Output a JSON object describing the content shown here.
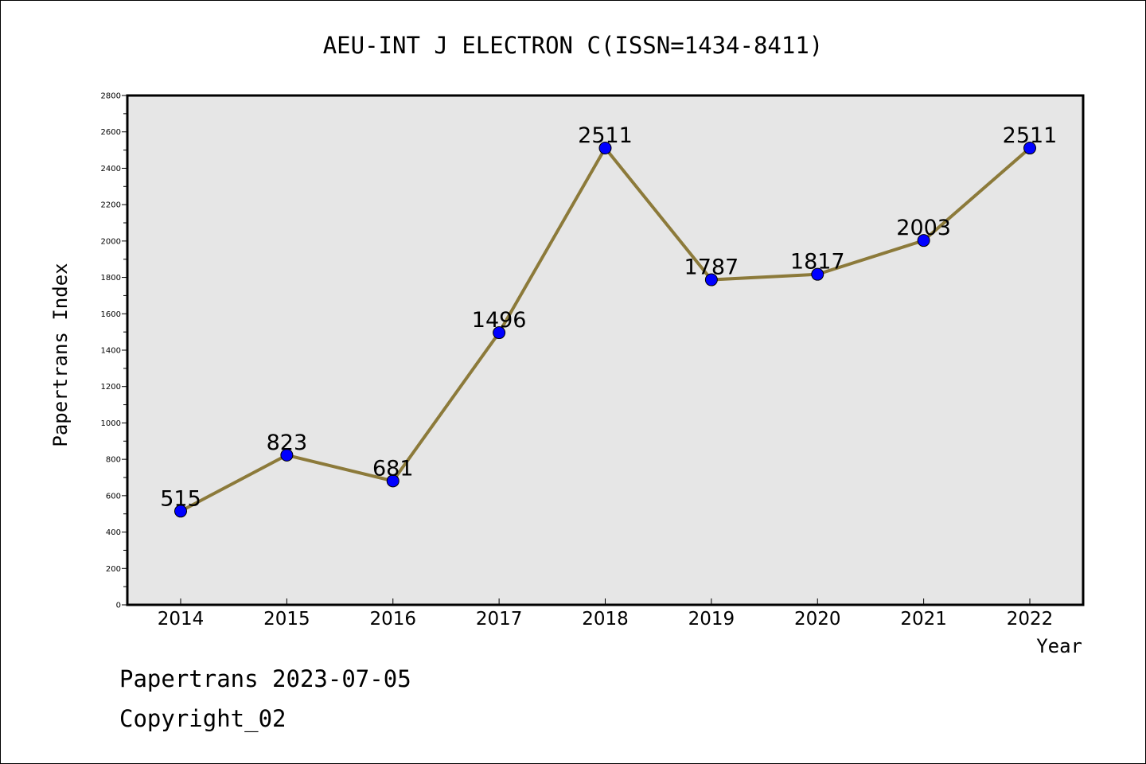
{
  "chart_data": {
    "type": "line",
    "title": "AEU-INT J ELECTRON C(ISSN=1434-8411)",
    "xlabel": "Year",
    "ylabel": "Papertrans Index",
    "categories": [
      "2014",
      "2015",
      "2016",
      "2017",
      "2018",
      "2019",
      "2020",
      "2021",
      "2022"
    ],
    "values": [
      515,
      823,
      681,
      1496,
      2511,
      1787,
      1817,
      2003,
      2511
    ],
    "data_labels": [
      "515",
      "823",
      "681",
      "1496",
      "2511",
      "1787",
      "1817",
      "2003",
      "2511"
    ],
    "ylim": [
      0,
      2800
    ],
    "yticks": [
      0,
      200,
      400,
      600,
      800,
      1000,
      1200,
      1400,
      1600,
      1800,
      2000,
      2200,
      2400,
      2600,
      2800
    ],
    "grid": false,
    "legend": "none",
    "colors": {
      "line": "#8c7a3a",
      "marker": "#0000ff",
      "plot_background": "#e6e6e6",
      "frame": "#000000"
    }
  },
  "footer": {
    "line1": "Papertrans 2023-07-05",
    "line2": "Copyright_02"
  }
}
